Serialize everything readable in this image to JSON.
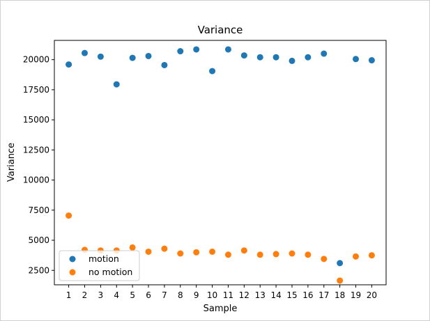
{
  "chart_data": {
    "type": "scatter",
    "title": "Variance",
    "xlabel": "Sample",
    "ylabel": "Variance",
    "x": [
      1,
      2,
      3,
      4,
      5,
      6,
      7,
      8,
      9,
      10,
      11,
      12,
      13,
      14,
      15,
      16,
      17,
      18,
      19,
      20
    ],
    "xlim": [
      0.1,
      20.9
    ],
    "ylim": [
      1300,
      21600
    ],
    "yticks": [
      2500,
      5000,
      7500,
      10000,
      12500,
      15000,
      17500,
      20000
    ],
    "grid": false,
    "legend": "lower-left",
    "series": [
      {
        "name": "motion",
        "color": "#1f77b4",
        "values": [
          19600,
          20550,
          20250,
          17950,
          20150,
          20300,
          19550,
          20700,
          20850,
          19050,
          20850,
          20350,
          20200,
          20200,
          19900,
          20200,
          20500,
          3100,
          20050,
          19950
        ]
      },
      {
        "name": "no motion",
        "color": "#ff7f0e",
        "values": [
          7050,
          4200,
          4150,
          4150,
          4400,
          4050,
          4300,
          3900,
          4000,
          4050,
          3800,
          4150,
          3800,
          3850,
          3900,
          3800,
          3450,
          1650,
          3650,
          3750
        ]
      }
    ]
  }
}
